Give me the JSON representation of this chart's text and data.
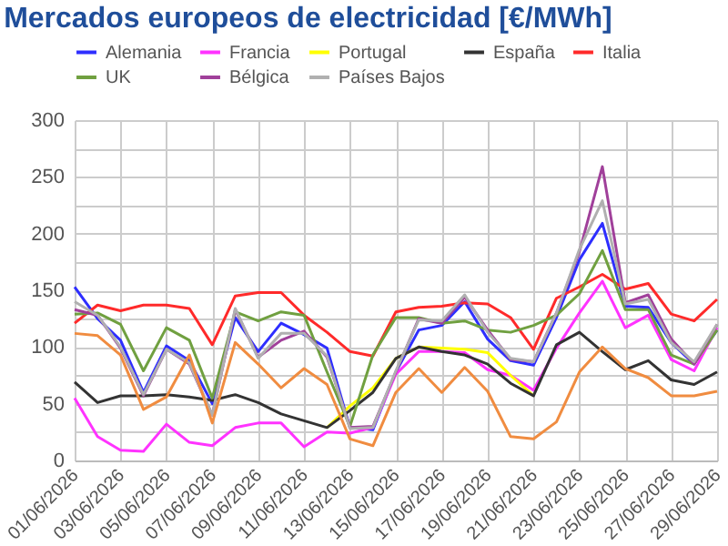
{
  "chart_data": {
    "type": "line",
    "title": "Mercados europeos de electricidad [€/MWh]",
    "categories": [
      "01/06/2026",
      null,
      "03/06/2026",
      null,
      "05/06/2026",
      null,
      "07/06/2026",
      null,
      "09/06/2026",
      null,
      "11/06/2026",
      null,
      "13/06/2026",
      null,
      "15/06/2026",
      null,
      "17/06/2026",
      null,
      "19/06/2026",
      null,
      "21/06/2026",
      null,
      "23/06/2026",
      null,
      "25/06/2026",
      null,
      "27/06/2026",
      null,
      "29/06/2026"
    ],
    "series": [
      {
        "name": "Alemania",
        "color": "#2e2eff",
        "values": [
          153,
          125,
          106,
          60,
          101,
          88,
          50,
          126,
          96,
          121,
          111,
          99,
          29,
          27,
          78,
          115,
          119,
          140,
          107,
          88,
          84,
          126,
          177,
          209,
          136,
          135,
          104,
          85,
          115
        ]
      },
      {
        "name": "Francia",
        "color": "#ff33ff",
        "values": [
          55,
          21,
          9,
          8,
          32,
          16,
          13,
          29,
          33,
          33,
          12,
          25,
          24,
          29,
          76,
          96,
          96,
          95,
          80,
          75,
          62,
          99,
          130,
          158,
          117,
          128,
          89,
          79,
          117
        ]
      },
      {
        "name": "Portugal",
        "color": "#ffff00",
        "values": [
          null,
          null,
          null,
          null,
          null,
          null,
          null,
          null,
          null,
          null,
          null,
          29,
          48,
          64,
          90,
          100,
          99,
          98,
          95,
          75,
          57,
          null,
          null,
          null,
          null,
          null,
          null,
          null,
          null
        ]
      },
      {
        "name": "España",
        "color": "#333333",
        "values": [
          69,
          51,
          57,
          57,
          58,
          56,
          53,
          58,
          51,
          41,
          35,
          29,
          44,
          60,
          90,
          100,
          96,
          93,
          85,
          68,
          57,
          102,
          113,
          96,
          80,
          88,
          71,
          67,
          78
        ]
      },
      {
        "name": "Italia",
        "color": "#ff2a2a",
        "values": [
          121,
          137,
          132,
          137,
          137,
          134,
          102,
          145,
          148,
          148,
          128,
          113,
          96,
          92,
          131,
          135,
          136,
          139,
          138,
          126,
          98,
          143,
          153,
          164,
          151,
          156,
          129,
          123,
          142
        ]
      },
      {
        "name": "UK",
        "color": "#70a040",
        "values": [
          129,
          130,
          120,
          79,
          117,
          106,
          55,
          131,
          123,
          131,
          128,
          78,
          30,
          93,
          126,
          126,
          121,
          123,
          115,
          113,
          119,
          128,
          147,
          185,
          133,
          133,
          93,
          85,
          115
        ]
      },
      {
        "name": "Bélgica",
        "color": "#a0409a",
        "values": [
          133,
          128,
          99,
          57,
          98,
          85,
          40,
          133,
          91,
          106,
          114,
          91,
          29,
          30,
          78,
          125,
          121,
          144,
          115,
          89,
          87,
          130,
          184,
          259,
          139,
          146,
          107,
          85,
          120
        ]
      },
      {
        "name": "Países Bajos",
        "color": "#b0b0b0",
        "values": [
          140,
          128,
          100,
          58,
          98,
          86,
          40,
          134,
          90,
          112,
          112,
          92,
          28,
          29,
          79,
          124,
          123,
          146,
          113,
          90,
          87,
          130,
          186,
          229,
          138,
          142,
          104,
          87,
          120
        ]
      },
      {
        "color": "#f08c40",
        "values": [
          112,
          110,
          93,
          45,
          56,
          93,
          33,
          104,
          85,
          64,
          81,
          67,
          19,
          13,
          60,
          81,
          60,
          82,
          61,
          21,
          19,
          34,
          78,
          100,
          81,
          73,
          57,
          57,
          61
        ]
      }
    ],
    "ylim": [
      0,
      300
    ],
    "yticks": [
      0,
      {
        "value": 25,
        "label": null
      },
      50,
      {
        "value": 75,
        "label": null
      },
      100,
      {
        "value": 125,
        "label": null
      },
      150,
      {
        "value": 175,
        "label": null
      },
      200,
      {
        "value": 225,
        "label": null
      },
      250,
      {
        "value": 275,
        "label": null
      },
      300
    ],
    "grid": true,
    "legend": "top"
  }
}
